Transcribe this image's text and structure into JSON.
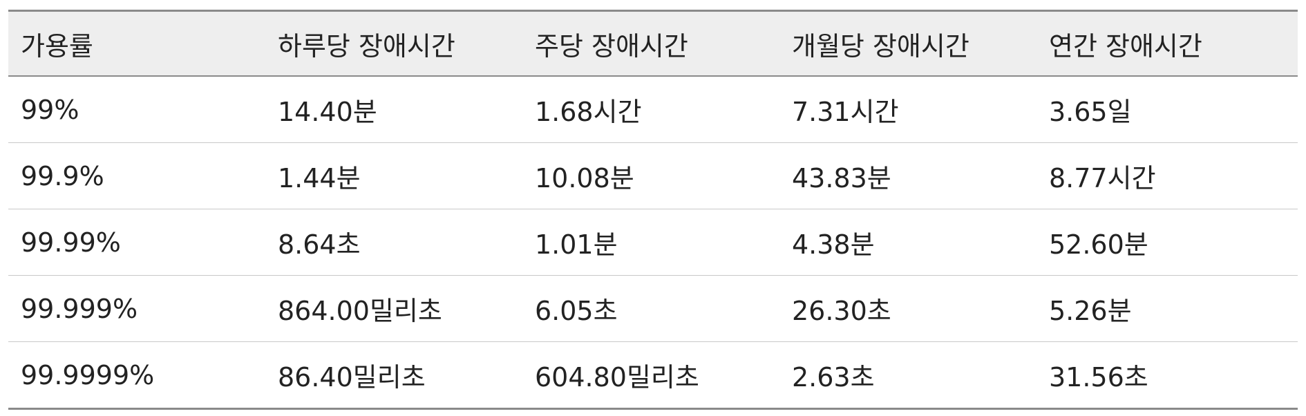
{
  "table": {
    "headers": [
      "가용률",
      "하루당 장애시간",
      "주당 장애시간",
      "개월당 장애시간",
      "연간 장애시간"
    ],
    "rows": [
      [
        "99%",
        "14.40분",
        "1.68시간",
        "7.31시간",
        "3.65일"
      ],
      [
        "99.9%",
        "1.44분",
        "10.08분",
        "43.83분",
        "8.77시간"
      ],
      [
        "99.99%",
        "8.64초",
        "1.01분",
        "4.38분",
        "52.60분"
      ],
      [
        "99.999%",
        "864.00밀리초",
        "6.05초",
        "26.30초",
        "5.26분"
      ],
      [
        "99.9999%",
        "86.40밀리초",
        "604.80밀리초",
        "2.63초",
        "31.56초"
      ]
    ]
  },
  "colors": {
    "header_bg": "#eeeeee",
    "rule_dark": "#8a8a8a",
    "rule_light": "#c8c8c8",
    "text": "#222222"
  }
}
